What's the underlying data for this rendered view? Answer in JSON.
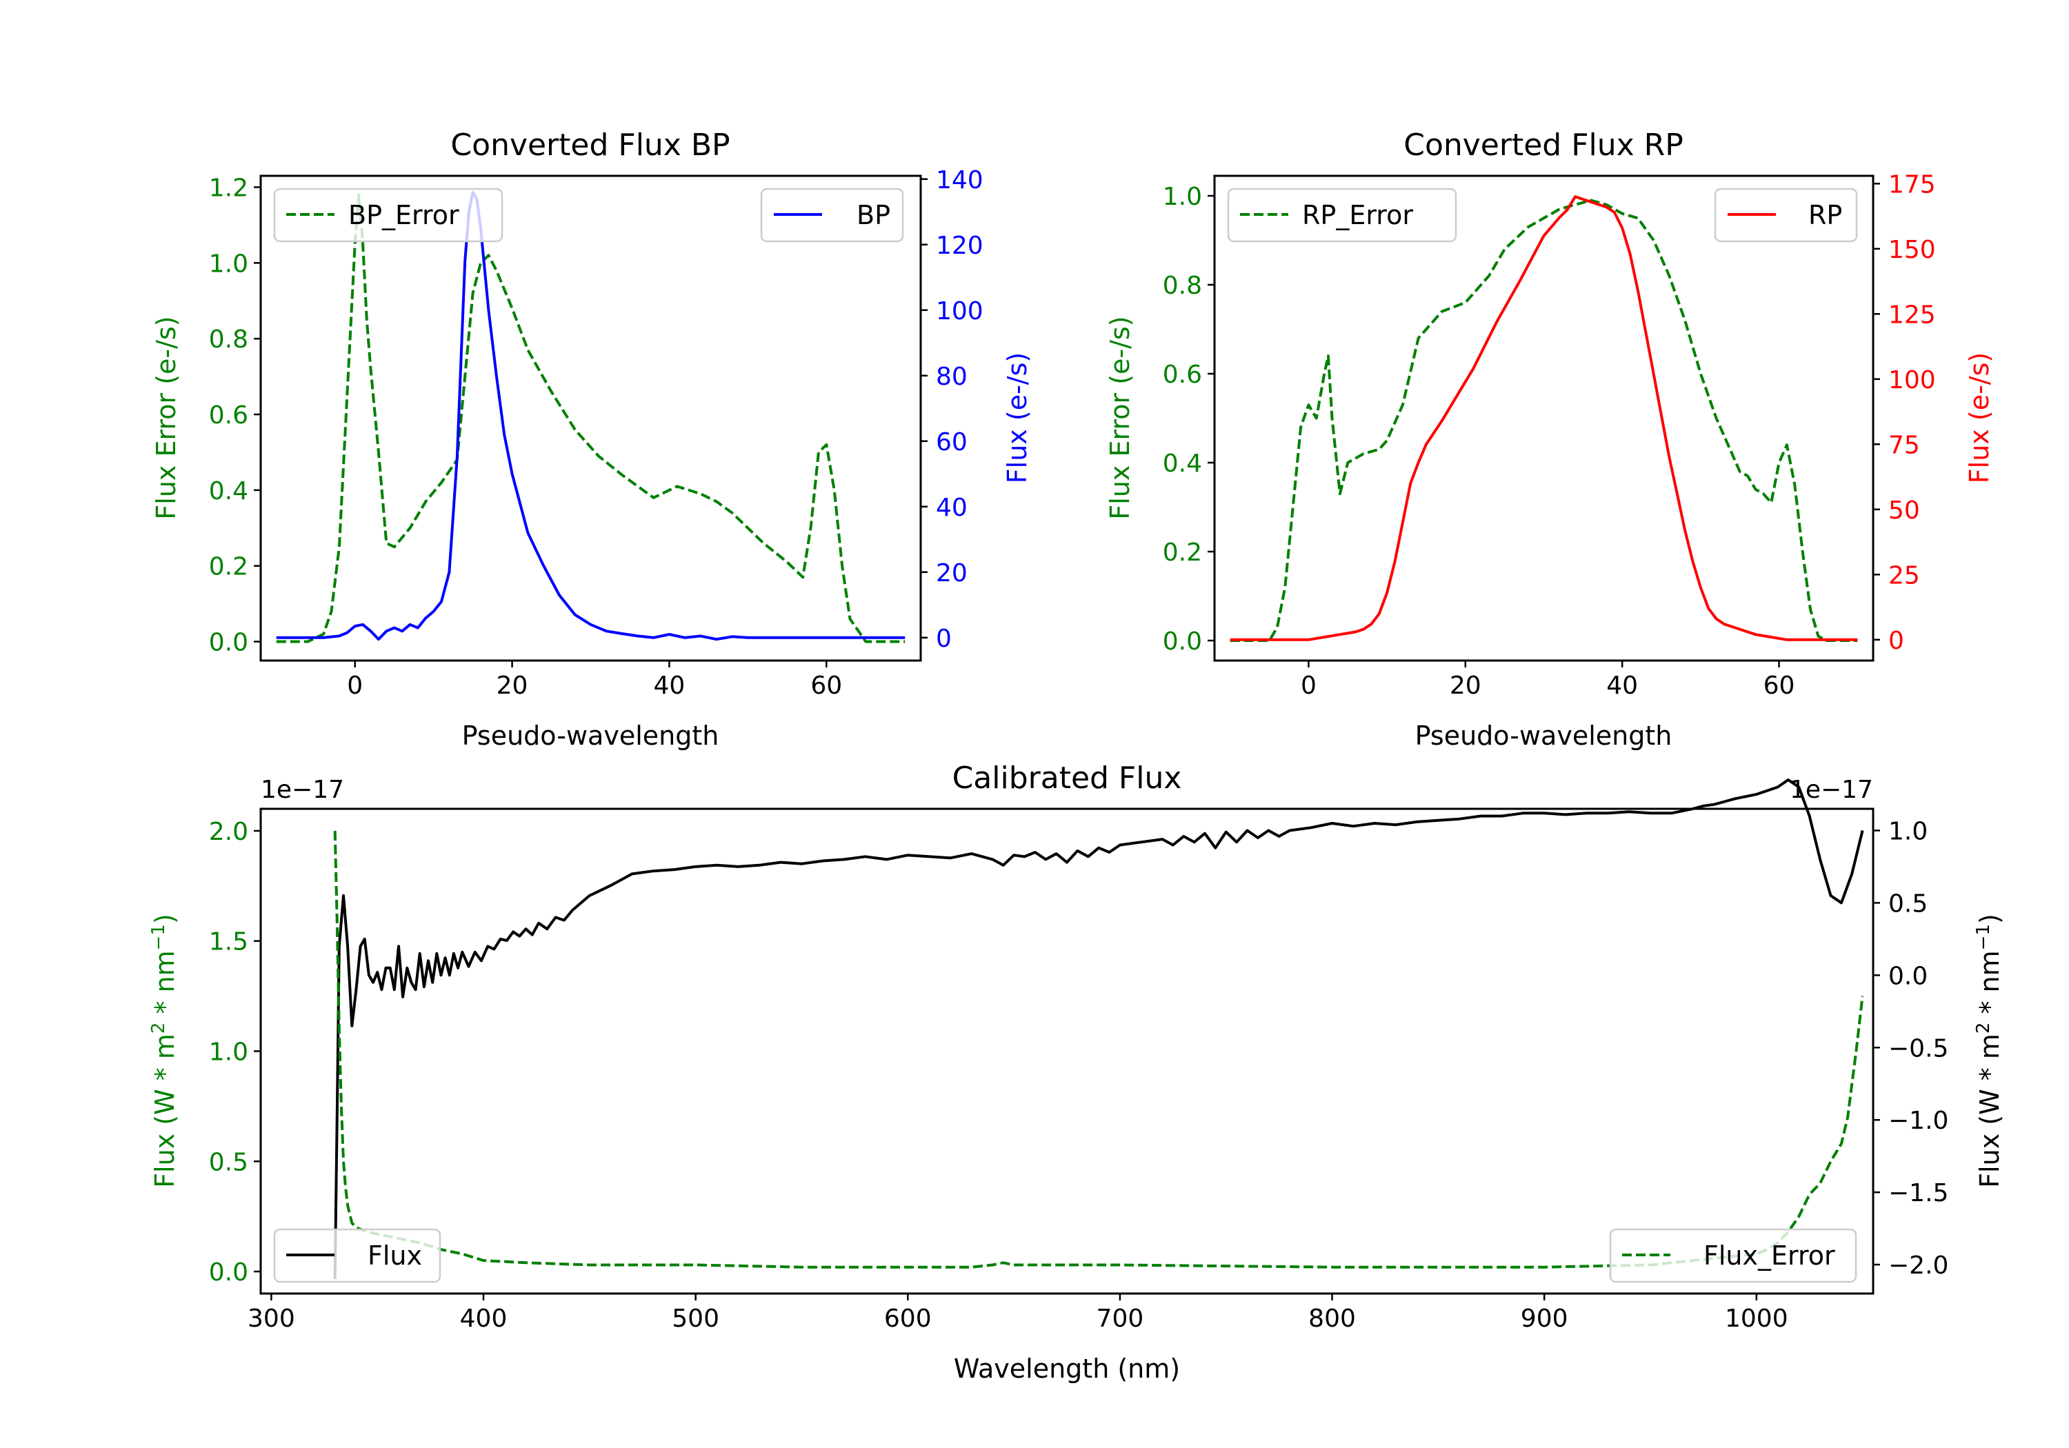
{
  "chart_data": [
    {
      "type": "line",
      "title": "Converted Flux BP",
      "xlabel": "Pseudo-wavelength",
      "xlim": [
        -12,
        72
      ],
      "xticks": [
        0,
        20,
        40,
        60
      ],
      "left_axis": {
        "label": "Flux Error (e-/s)",
        "color": "#008000",
        "ylim": [
          -0.05,
          1.23
        ],
        "ticks": [
          0.0,
          0.2,
          0.4,
          0.6,
          0.8,
          1.0,
          1.2
        ],
        "tick_labels": [
          "0.0",
          "0.2",
          "0.4",
          "0.6",
          "0.8",
          "1.0",
          "1.2"
        ]
      },
      "right_axis": {
        "label": "Flux (e-/s)",
        "color": "#0000ff",
        "ylim": [
          -7,
          141
        ],
        "ticks": [
          0,
          20,
          40,
          60,
          80,
          100,
          120,
          140
        ],
        "tick_labels": [
          "0",
          "20",
          "40",
          "60",
          "80",
          "100",
          "120",
          "140"
        ]
      },
      "series": [
        {
          "name": "BP_Error",
          "axis": "left",
          "color": "#008000",
          "dashed": true,
          "legend": "top-left",
          "x": [
            -10,
            -6,
            -4,
            -3,
            -2,
            -1,
            0,
            0.5,
            1,
            1.5,
            2,
            3,
            4,
            5,
            7,
            9,
            11,
            13,
            14,
            15,
            16,
            17,
            18,
            20,
            22,
            25,
            28,
            31,
            34,
            38,
            41,
            44,
            46,
            48,
            52,
            55,
            57,
            58,
            59,
            60,
            61,
            62,
            63,
            65,
            70
          ],
          "y": [
            0.0,
            0.0,
            0.02,
            0.08,
            0.25,
            0.65,
            1.05,
            1.18,
            1.05,
            0.85,
            0.72,
            0.5,
            0.26,
            0.25,
            0.3,
            0.37,
            0.42,
            0.48,
            0.7,
            0.92,
            1.0,
            1.02,
            0.98,
            0.88,
            0.77,
            0.66,
            0.56,
            0.49,
            0.44,
            0.38,
            0.41,
            0.39,
            0.37,
            0.34,
            0.26,
            0.21,
            0.17,
            0.3,
            0.5,
            0.52,
            0.4,
            0.2,
            0.06,
            0.0,
            0.0
          ]
        },
        {
          "name": "BP",
          "axis": "right",
          "color": "#0000ff",
          "dashed": false,
          "legend": "top-right",
          "x": [
            -10,
            -6,
            -4,
            -2,
            -1,
            0,
            1,
            2,
            3,
            4,
            5,
            6,
            7,
            8,
            9,
            10,
            11,
            12,
            13,
            13.5,
            14,
            14.5,
            15,
            15.5,
            16,
            17,
            18,
            19,
            20,
            22,
            24,
            26,
            28,
            30,
            32,
            34,
            36,
            38,
            40,
            42,
            44,
            46,
            48,
            50,
            55,
            60,
            65,
            70
          ],
          "y": [
            0,
            0,
            0,
            0.5,
            1.5,
            3.5,
            4,
            2,
            -0.5,
            2,
            3,
            2,
            4,
            3,
            6,
            8,
            11,
            20,
            55,
            85,
            115,
            130,
            136,
            134,
            125,
            100,
            80,
            62,
            50,
            32,
            22,
            13,
            7,
            4,
            2,
            1.2,
            0.5,
            0,
            1,
            0,
            0.5,
            -0.5,
            0.3,
            0,
            0,
            0,
            0,
            0
          ]
        }
      ]
    },
    {
      "type": "line",
      "title": "Converted Flux RP",
      "xlabel": "Pseudo-wavelength",
      "xlim": [
        -12,
        72
      ],
      "xticks": [
        0,
        20,
        40,
        60
      ],
      "left_axis": {
        "label": "Flux Error (e-/s)",
        "color": "#008000",
        "ylim": [
          -0.045,
          1.045
        ],
        "ticks": [
          0.0,
          0.2,
          0.4,
          0.6,
          0.8,
          1.0
        ],
        "tick_labels": [
          "0.0",
          "0.2",
          "0.4",
          "0.6",
          "0.8",
          "1.0"
        ]
      },
      "right_axis": {
        "label": "Flux (e-/s)",
        "color": "#ff0000",
        "ylim": [
          -8,
          178
        ],
        "ticks": [
          0,
          25,
          50,
          75,
          100,
          125,
          150,
          175
        ],
        "tick_labels": [
          "0",
          "25",
          "50",
          "75",
          "100",
          "125",
          "150",
          "175"
        ]
      },
      "series": [
        {
          "name": "RP_Error",
          "axis": "left",
          "color": "#008000",
          "dashed": true,
          "legend": "top-left",
          "x": [
            -10,
            -5,
            -4,
            -3,
            -2,
            -1,
            0,
            1,
            2,
            2.5,
            3,
            4,
            5,
            7,
            9,
            10,
            12,
            14,
            17,
            20,
            23,
            25,
            28,
            30,
            32,
            34,
            36,
            38,
            40,
            42,
            44,
            46,
            48,
            50,
            52,
            54,
            55,
            56,
            57,
            58,
            59,
            60,
            61,
            62,
            63,
            64,
            65,
            66,
            70
          ],
          "y": [
            0.0,
            0.0,
            0.03,
            0.12,
            0.3,
            0.48,
            0.53,
            0.5,
            0.6,
            0.64,
            0.5,
            0.33,
            0.4,
            0.42,
            0.43,
            0.45,
            0.53,
            0.68,
            0.74,
            0.76,
            0.82,
            0.88,
            0.93,
            0.95,
            0.97,
            0.98,
            0.99,
            0.98,
            0.96,
            0.95,
            0.9,
            0.82,
            0.72,
            0.6,
            0.5,
            0.42,
            0.38,
            0.37,
            0.34,
            0.33,
            0.31,
            0.4,
            0.44,
            0.35,
            0.2,
            0.07,
            0.01,
            0.0,
            0.0
          ]
        },
        {
          "name": "RP",
          "axis": "right",
          "color": "#ff0000",
          "dashed": false,
          "legend": "top-right",
          "x": [
            -10,
            -5,
            0,
            2,
            4,
            6,
            7,
            8,
            9,
            10,
            11,
            12,
            13,
            14,
            15,
            17,
            19,
            21,
            24,
            27,
            30,
            32,
            33,
            34,
            35,
            36,
            37,
            38,
            39,
            40,
            41,
            42,
            43,
            44,
            45,
            46,
            47,
            48,
            49,
            50,
            51,
            52,
            53,
            55,
            57,
            59,
            61,
            63,
            65,
            70
          ],
          "y": [
            0,
            0,
            0,
            1,
            2,
            3,
            4,
            6,
            10,
            18,
            30,
            45,
            60,
            68,
            75,
            84,
            94,
            104,
            122,
            138,
            155,
            162,
            165,
            170,
            169,
            168,
            167,
            166,
            164,
            158,
            148,
            134,
            118,
            102,
            86,
            70,
            56,
            42,
            30,
            20,
            12,
            8,
            6,
            4,
            2,
            1,
            0,
            0,
            0,
            0
          ]
        }
      ]
    },
    {
      "type": "line",
      "title": "Calibrated Flux",
      "xlabel": "Wavelength (nm)",
      "xlim": [
        295,
        1055
      ],
      "xticks": [
        300,
        400,
        500,
        600,
        700,
        800,
        900,
        1000
      ],
      "left_axis": {
        "label": "Flux (W * m² * nm⁻¹)",
        "label_main": "Flux (W * m",
        "label_sup1": "2",
        "label_mid": " * nm",
        "label_sup2": "−1",
        "label_end": ")",
        "color": "#008000",
        "offset_label": "1e−17",
        "ylim": [
          -0.1,
          2.1
        ],
        "ticks": [
          0.0,
          0.5,
          1.0,
          1.5,
          2.0
        ],
        "tick_labels": [
          "0.0",
          "0.5",
          "1.0",
          "1.5",
          "2.0"
        ]
      },
      "right_axis": {
        "label": "Flux (W * m² * nm⁻¹)",
        "label_main": "Flux (W * m",
        "label_sup1": "2",
        "label_mid": " * nm",
        "label_sup2": "−1",
        "label_end": ")",
        "color": "#000000",
        "offset_label": "1e−17",
        "ylim": [
          -2.2,
          1.15
        ],
        "ticks": [
          -2.0,
          -1.5,
          -1.0,
          -0.5,
          0.0,
          0.5,
          1.0
        ],
        "tick_labels": [
          "−2.0",
          "−1.5",
          "−1.0",
          "−0.5",
          "0.0",
          "0.5",
          "1.0"
        ]
      },
      "series": [
        {
          "name": "Flux",
          "axis": "right",
          "color": "#000000",
          "dashed": false,
          "legend": "bottom-left",
          "x": [
            330,
            331,
            332,
            334,
            336,
            338,
            340,
            342,
            344,
            346,
            348,
            350,
            352,
            354,
            356,
            358,
            360,
            362,
            364,
            366,
            368,
            370,
            372,
            374,
            376,
            378,
            380,
            382,
            384,
            386,
            388,
            390,
            393,
            396,
            399,
            402,
            405,
            408,
            411,
            414,
            417,
            420,
            423,
            426,
            430,
            434,
            438,
            442,
            446,
            450,
            460,
            470,
            480,
            490,
            500,
            510,
            520,
            530,
            540,
            550,
            560,
            570,
            580,
            590,
            600,
            610,
            620,
            630,
            640,
            645,
            650,
            655,
            660,
            665,
            670,
            675,
            680,
            685,
            690,
            695,
            700,
            710,
            720,
            725,
            730,
            735,
            740,
            745,
            750,
            755,
            760,
            765,
            770,
            775,
            780,
            790,
            800,
            810,
            820,
            830,
            840,
            850,
            860,
            870,
            880,
            890,
            900,
            910,
            920,
            930,
            940,
            950,
            960,
            970,
            975,
            980,
            985,
            990,
            1000,
            1010,
            1015,
            1020,
            1025,
            1030,
            1035,
            1040,
            1045,
            1050
          ],
          "y": [
            -2.1,
            -1.0,
            0.2,
            0.55,
            0.2,
            -0.35,
            -0.1,
            0.2,
            0.25,
            0.0,
            -0.05,
            0.02,
            -0.1,
            0.05,
            0.05,
            -0.1,
            0.2,
            -0.15,
            0.05,
            -0.05,
            -0.1,
            0.15,
            -0.08,
            0.1,
            -0.05,
            0.15,
            0.0,
            0.12,
            0.0,
            0.15,
            0.05,
            0.16,
            0.06,
            0.16,
            0.1,
            0.2,
            0.18,
            0.25,
            0.24,
            0.3,
            0.27,
            0.32,
            0.28,
            0.36,
            0.32,
            0.4,
            0.38,
            0.45,
            0.5,
            0.55,
            0.62,
            0.7,
            0.72,
            0.73,
            0.75,
            0.76,
            0.75,
            0.76,
            0.78,
            0.77,
            0.79,
            0.8,
            0.82,
            0.8,
            0.83,
            0.82,
            0.81,
            0.84,
            0.8,
            0.76,
            0.83,
            0.82,
            0.85,
            0.8,
            0.84,
            0.78,
            0.86,
            0.82,
            0.88,
            0.85,
            0.9,
            0.92,
            0.94,
            0.9,
            0.96,
            0.92,
            0.98,
            0.88,
            0.99,
            0.92,
            1.0,
            0.95,
            1.0,
            0.96,
            1.0,
            1.02,
            1.05,
            1.03,
            1.05,
            1.04,
            1.06,
            1.07,
            1.08,
            1.1,
            1.1,
            1.12,
            1.12,
            1.11,
            1.12,
            1.12,
            1.13,
            1.12,
            1.12,
            1.15,
            1.17,
            1.18,
            1.2,
            1.22,
            1.25,
            1.3,
            1.35,
            1.3,
            1.1,
            0.8,
            0.55,
            0.5,
            0.7,
            1.0
          ]
        },
        {
          "name": "Flux_Error",
          "axis": "left",
          "color": "#008000",
          "dashed": true,
          "legend": "bottom-right",
          "x": [
            330,
            331,
            332,
            333,
            334,
            335,
            336,
            338,
            340,
            345,
            350,
            355,
            360,
            370,
            380,
            390,
            400,
            420,
            450,
            500,
            550,
            600,
            630,
            640,
            645,
            650,
            700,
            800,
            900,
            950,
            980,
            1000,
            1005,
            1010,
            1015,
            1020,
            1025,
            1030,
            1035,
            1040,
            1043,
            1045,
            1047,
            1050
          ],
          "y": [
            2.0,
            1.6,
            1.1,
            0.75,
            0.5,
            0.38,
            0.3,
            0.22,
            0.2,
            0.18,
            0.17,
            0.16,
            0.15,
            0.13,
            0.1,
            0.08,
            0.05,
            0.04,
            0.03,
            0.03,
            0.02,
            0.02,
            0.02,
            0.03,
            0.04,
            0.03,
            0.03,
            0.02,
            0.02,
            0.03,
            0.06,
            0.08,
            0.1,
            0.13,
            0.18,
            0.25,
            0.35,
            0.4,
            0.5,
            0.58,
            0.7,
            0.85,
            1.0,
            1.25
          ]
        }
      ]
    }
  ]
}
